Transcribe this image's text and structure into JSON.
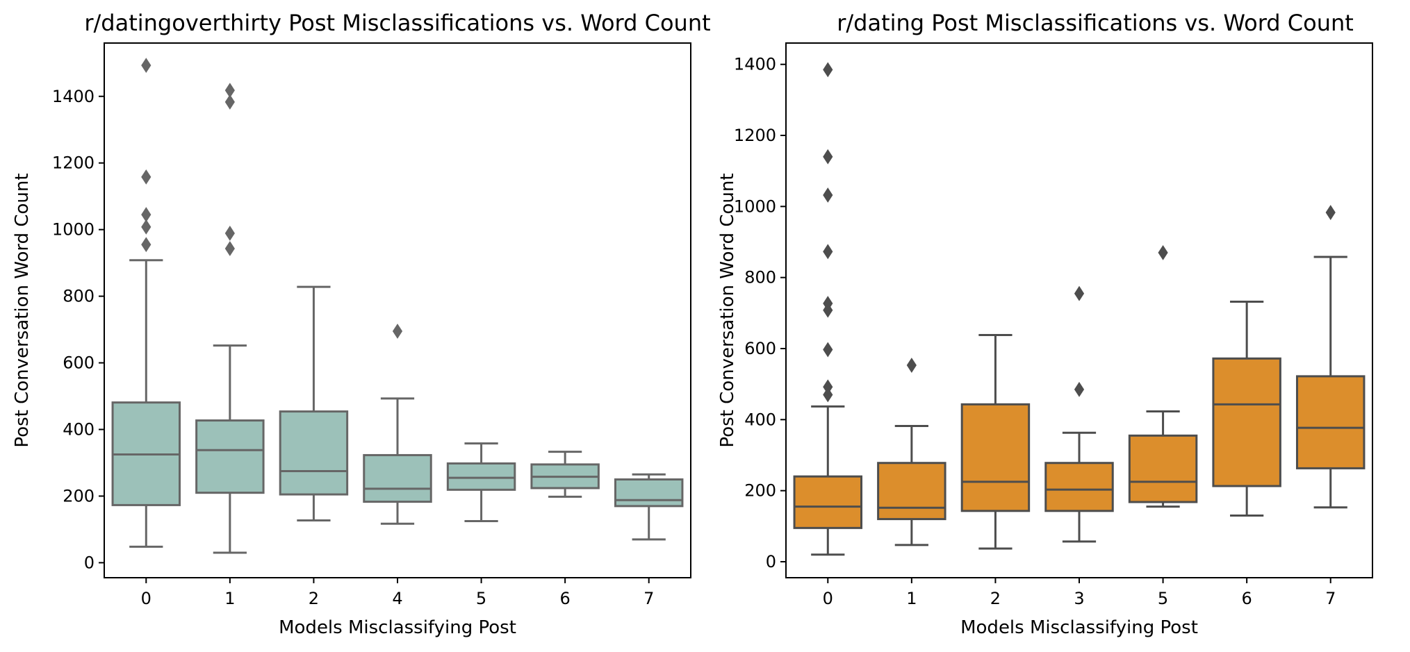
{
  "chart_data": [
    {
      "type": "box",
      "title": "r/datingoverthirty Post Misclassifications vs. Word Count",
      "xlabel": "Models Misclassifying Post",
      "ylabel": "Post Conversation Word Count",
      "ylim": [
        -45,
        1560
      ],
      "yticks": [
        0,
        200,
        400,
        600,
        800,
        1000,
        1200,
        1400
      ],
      "color": "#9cc1b9",
      "line_color": "#666666",
      "grid": false,
      "categories": [
        "0",
        "1",
        "2",
        "4",
        "5",
        "6",
        "7"
      ],
      "boxes": [
        {
          "min": 48,
          "q1": 173,
          "median": 325,
          "q3": 481,
          "max": 908,
          "outliers": [
            955,
            1008,
            1045,
            1158,
            1493
          ]
        },
        {
          "min": 30,
          "q1": 210,
          "median": 338,
          "q3": 427,
          "max": 652,
          "outliers": [
            943,
            989,
            1383,
            1418
          ]
        },
        {
          "min": 127,
          "q1": 205,
          "median": 275,
          "q3": 454,
          "max": 828,
          "outliers": []
        },
        {
          "min": 117,
          "q1": 183,
          "median": 222,
          "q3": 323,
          "max": 493,
          "outliers": [
            695
          ]
        },
        {
          "min": 125,
          "q1": 219,
          "median": 255,
          "q3": 298,
          "max": 358,
          "outliers": []
        },
        {
          "min": 198,
          "q1": 224,
          "median": 258,
          "q3": 295,
          "max": 333,
          "outliers": []
        },
        {
          "min": 70,
          "q1": 170,
          "median": 188,
          "q3": 250,
          "max": 265,
          "outliers": []
        }
      ]
    },
    {
      "type": "box",
      "title": "r/dating Post Misclassifications vs. Word Count",
      "xlabel": "Models Misclassifying Post",
      "ylabel": "Post Conversation Word Count",
      "ylim": [
        -45,
        1460
      ],
      "yticks": [
        0,
        200,
        400,
        600,
        800,
        1000,
        1200,
        1400
      ],
      "color": "#dc8e2c",
      "line_color": "#4d4d4d",
      "grid": false,
      "categories": [
        "0",
        "1",
        "2",
        "3",
        "5",
        "6",
        "7"
      ],
      "boxes": [
        {
          "min": 20,
          "q1": 95,
          "median": 155,
          "q3": 240,
          "max": 437,
          "outliers": [
            470,
            492,
            597,
            708,
            727,
            873,
            1032,
            1140,
            1385
          ]
        },
        {
          "min": 47,
          "q1": 120,
          "median": 152,
          "q3": 278,
          "max": 382,
          "outliers": [
            553
          ]
        },
        {
          "min": 37,
          "q1": 143,
          "median": 225,
          "q3": 443,
          "max": 638,
          "outliers": []
        },
        {
          "min": 57,
          "q1": 143,
          "median": 203,
          "q3": 278,
          "max": 363,
          "outliers": [
            485,
            755
          ]
        },
        {
          "min": 155,
          "q1": 168,
          "median": 225,
          "q3": 355,
          "max": 423,
          "outliers": [
            870
          ]
        },
        {
          "min": 130,
          "q1": 213,
          "median": 443,
          "q3": 572,
          "max": 732,
          "outliers": []
        },
        {
          "min": 153,
          "q1": 263,
          "median": 377,
          "q3": 522,
          "max": 858,
          "outliers": [
            983
          ]
        }
      ]
    }
  ]
}
